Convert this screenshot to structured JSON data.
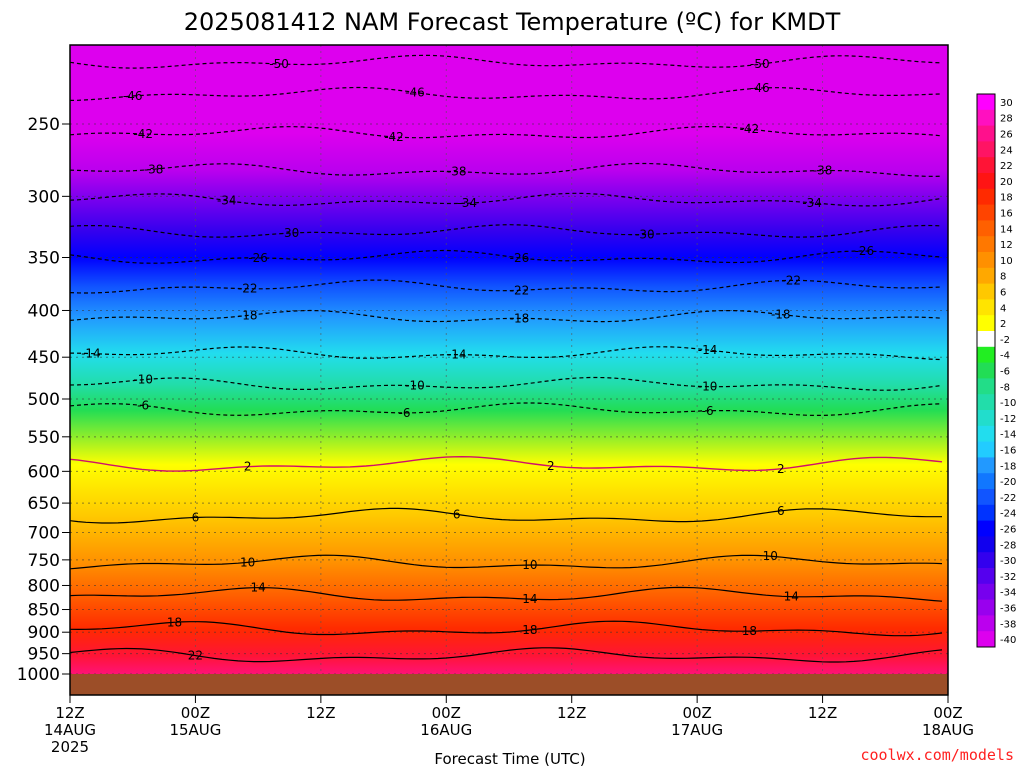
{
  "chart_data": {
    "type": "heatmap",
    "title": "2025081412 NAM Forecast Temperature (ºC) for KMDT",
    "xlabel": "Forecast Time (UTC)",
    "x_ticks": [
      {
        "hour": 0,
        "label1": "12Z",
        "label2": "14AUG",
        "label3": "2025"
      },
      {
        "hour": 12,
        "label1": "00Z",
        "label2": "15AUG",
        "label3": ""
      },
      {
        "hour": 24,
        "label1": "12Z",
        "label2": "",
        "label3": ""
      },
      {
        "hour": 36,
        "label1": "00Z",
        "label2": "16AUG",
        "label3": ""
      },
      {
        "hour": 48,
        "label1": "12Z",
        "label2": "",
        "label3": ""
      },
      {
        "hour": 60,
        "label1": "00Z",
        "label2": "17AUG",
        "label3": ""
      },
      {
        "hour": 72,
        "label1": "12Z",
        "label2": "",
        "label3": ""
      },
      {
        "hour": 84,
        "label1": "00Z",
        "label2": "18AUG",
        "label3": ""
      }
    ],
    "xlim": [
      0,
      84
    ],
    "ylabel": "",
    "y_ticks": [
      250,
      300,
      350,
      400,
      450,
      500,
      550,
      600,
      650,
      700,
      750,
      800,
      850,
      900,
      950,
      1000
    ],
    "ylim": [
      1000,
      200
    ],
    "ground_pressure": 992,
    "colorbar": {
      "levels": [
        30,
        28,
        26,
        24,
        22,
        20,
        18,
        16,
        14,
        12,
        10,
        8,
        6,
        4,
        2,
        -2,
        -4,
        -6,
        -8,
        -10,
        -12,
        -14,
        -16,
        -18,
        -20,
        -22,
        -24,
        -26,
        -28,
        -30,
        -32,
        -34,
        -36,
        -38,
        -40
      ],
      "colors": [
        "#ff00ff",
        "#ff10c0",
        "#ff108c",
        "#ff1464",
        "#ff1436",
        "#ff1414",
        "#ff2a00",
        "#ff4400",
        "#ff6000",
        "#ff7800",
        "#ff9000",
        "#ffa800",
        "#ffc800",
        "#ffe400",
        "#ffff00",
        "#ffffff",
        "#22ee22",
        "#22dd55",
        "#22dd88",
        "#22ddaa",
        "#22ddcc",
        "#22ddee",
        "#22ccff",
        "#2299ff",
        "#1177ff",
        "#1155ff",
        "#0033ff",
        "#0000ff",
        "#1100ee",
        "#3300ee",
        "#5500ee",
        "#7700ee",
        "#9900ee",
        "#bb00ee",
        "#dd00ee"
      ]
    },
    "contours": [
      {
        "level": -50,
        "pressure": 214,
        "labels": [
          {
            "hour": 20,
            "text": "-50"
          },
          {
            "hour": 66,
            "text": "-50"
          }
        ]
      },
      {
        "level": -46,
        "pressure": 232,
        "labels": [
          {
            "hour": 6,
            "text": "-46"
          },
          {
            "hour": 33,
            "text": "-46"
          },
          {
            "hour": 66,
            "text": "-46"
          }
        ]
      },
      {
        "level": -42,
        "pressure": 256,
        "labels": [
          {
            "hour": 7,
            "text": "-42"
          },
          {
            "hour": 31,
            "text": "-42"
          },
          {
            "hour": 65,
            "text": "-42"
          }
        ]
      },
      {
        "level": -38,
        "pressure": 281,
        "labels": [
          {
            "hour": 8,
            "text": "-38"
          },
          {
            "hour": 37,
            "text": "-38"
          },
          {
            "hour": 72,
            "text": "-38"
          }
        ]
      },
      {
        "level": -34,
        "pressure": 303,
        "labels": [
          {
            "hour": 15,
            "text": "-34"
          },
          {
            "hour": 38,
            "text": "-34"
          },
          {
            "hour": 71,
            "text": "-34"
          }
        ]
      },
      {
        "level": -30,
        "pressure": 328,
        "labels": [
          {
            "hour": 21,
            "text": "-30"
          },
          {
            "hour": 55,
            "text": "-30"
          }
        ]
      },
      {
        "level": -26,
        "pressure": 350,
        "labels": [
          {
            "hour": 18,
            "text": "-26"
          },
          {
            "hour": 43,
            "text": "-26"
          },
          {
            "hour": 76,
            "text": "-26"
          }
        ]
      },
      {
        "level": -22,
        "pressure": 377,
        "labels": [
          {
            "hour": 17,
            "text": "-22"
          },
          {
            "hour": 43,
            "text": "-22"
          },
          {
            "hour": 69,
            "text": "-22"
          }
        ]
      },
      {
        "level": -18,
        "pressure": 407,
        "labels": [
          {
            "hour": 17,
            "text": "-18"
          },
          {
            "hour": 43,
            "text": "-18"
          },
          {
            "hour": 68,
            "text": "-18"
          }
        ]
      },
      {
        "level": -14,
        "pressure": 446,
        "labels": [
          {
            "hour": 2,
            "text": "-14"
          },
          {
            "hour": 37,
            "text": "-14"
          },
          {
            "hour": 61,
            "text": "-14"
          }
        ]
      },
      {
        "level": -10,
        "pressure": 482,
        "labels": [
          {
            "hour": 7,
            "text": "-10"
          },
          {
            "hour": 33,
            "text": "-10"
          },
          {
            "hour": 61,
            "text": "-10"
          }
        ]
      },
      {
        "level": -6,
        "pressure": 514,
        "labels": [
          {
            "hour": 7,
            "text": "-6"
          },
          {
            "hour": 32,
            "text": "-6"
          },
          {
            "hour": 61,
            "text": "-6"
          }
        ]
      },
      {
        "level": 2,
        "pressure": 590,
        "labels": [
          {
            "hour": 17,
            "text": "2"
          },
          {
            "hour": 46,
            "text": "2"
          },
          {
            "hour": 68,
            "text": "2"
          }
        ]
      },
      {
        "level": 6,
        "pressure": 672,
        "labels": [
          {
            "hour": 12,
            "text": "6"
          },
          {
            "hour": 37,
            "text": "6"
          },
          {
            "hour": 68,
            "text": "6"
          }
        ]
      },
      {
        "level": 10,
        "pressure": 756,
        "labels": [
          {
            "hour": 17,
            "text": "10"
          },
          {
            "hour": 44,
            "text": "10"
          },
          {
            "hour": 67,
            "text": "10"
          }
        ]
      },
      {
        "level": 14,
        "pressure": 820,
        "labels": [
          {
            "hour": 18,
            "text": "14"
          },
          {
            "hour": 44,
            "text": "14"
          },
          {
            "hour": 69,
            "text": "14"
          }
        ]
      },
      {
        "level": 18,
        "pressure": 893,
        "labels": [
          {
            "hour": 10,
            "text": "18"
          },
          {
            "hour": 44,
            "text": "18"
          },
          {
            "hour": 65,
            "text": "18"
          }
        ]
      },
      {
        "level": 22,
        "pressure": 955,
        "labels": [
          {
            "hour": 12,
            "text": "22"
          }
        ]
      }
    ],
    "grid": true
  },
  "credit": "coolwx.com/models"
}
